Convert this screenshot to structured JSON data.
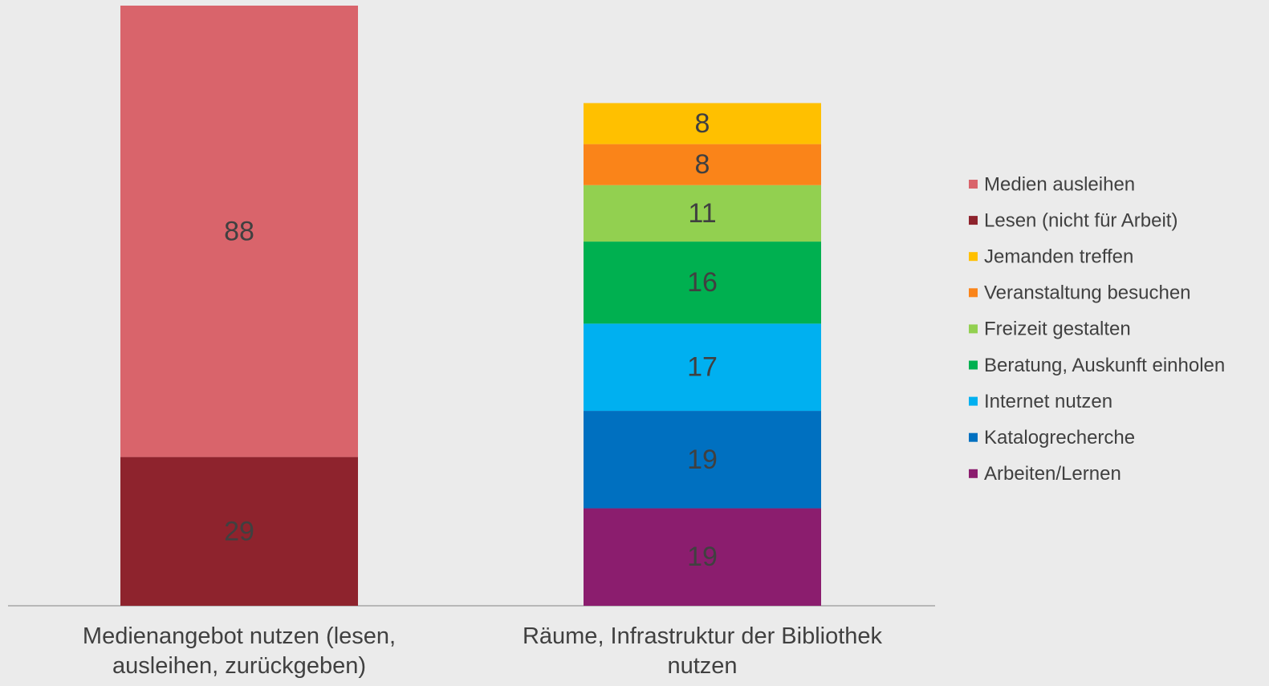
{
  "chart_data": {
    "type": "stacked_bar",
    "categories": [
      "Medienangebot nutzen (lesen, ausleihen, zurückgeben)",
      "Räume, Infrastruktur der Bibliothek nutzen"
    ],
    "series": [
      {
        "name": "Arbeiten/Lernen",
        "color": "#8b1d6e",
        "values": [
          null,
          19
        ]
      },
      {
        "name": "Katalogrecherche",
        "color": "#0070c0",
        "values": [
          null,
          19
        ]
      },
      {
        "name": "Internet nutzen",
        "color": "#00b0f0",
        "values": [
          null,
          17
        ]
      },
      {
        "name": "Beratung, Auskunft einholen",
        "color": "#00b050",
        "values": [
          null,
          16
        ]
      },
      {
        "name": "Freizeit gestalten",
        "color": "#92d050",
        "values": [
          null,
          11
        ]
      },
      {
        "name": "Veranstaltung besuchen",
        "color": "#fa8419",
        "values": [
          null,
          8
        ]
      },
      {
        "name": "Jemanden treffen",
        "color": "#ffc000",
        "values": [
          null,
          8
        ]
      },
      {
        "name": "Lesen (nicht für Arbeit)",
        "color": "#8e232d",
        "values": [
          29,
          null
        ]
      },
      {
        "name": "Medien ausleihen",
        "color": "#d9646b",
        "values": [
          88,
          null
        ]
      }
    ]
  }
}
